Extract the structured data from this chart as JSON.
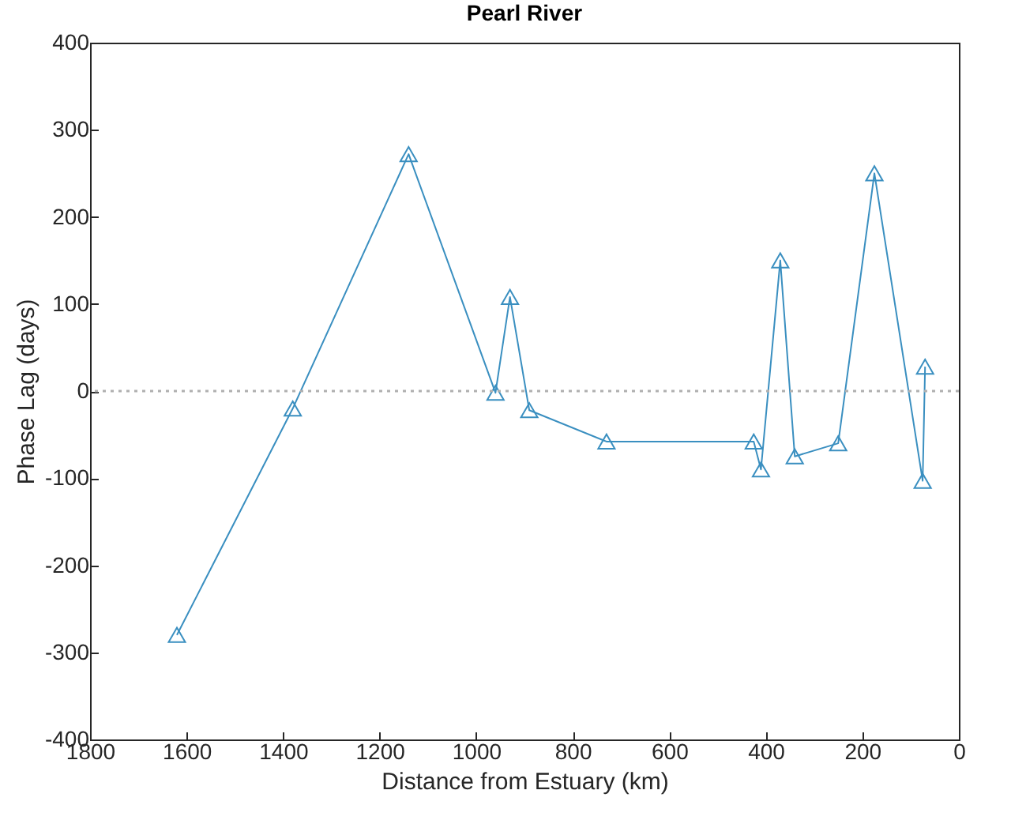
{
  "chart_data": {
    "type": "line",
    "title": "Pearl River",
    "xlabel": "Distance from Estuary (km)",
    "ylabel": "Phase Lag (days)",
    "x": [
      1620,
      1380,
      1140,
      960,
      930,
      890,
      730,
      425,
      410,
      370,
      340,
      250,
      175,
      75,
      70
    ],
    "series": [
      {
        "color": "#3a8fc0",
        "values": [
          -280,
          -20,
          272,
          -2,
          108,
          -22,
          -58,
          -58,
          -90,
          150,
          -75,
          -60,
          250,
          -103,
          28
        ]
      }
    ],
    "xlim": [
      1800,
      0
    ],
    "xticks": [
      1800,
      1600,
      1400,
      1200,
      1000,
      800,
      600,
      400,
      200,
      0
    ],
    "ylim": [
      -400,
      400
    ],
    "yticks": [
      -400,
      -300,
      -200,
      -100,
      0,
      100,
      200,
      300,
      400
    ],
    "marker": "triangle",
    "line_style": "solid",
    "grid": false,
    "ref_lines": [
      {
        "axis": "y",
        "value": 0,
        "color": "#b0b0b0",
        "line_style": "dotted"
      }
    ]
  }
}
